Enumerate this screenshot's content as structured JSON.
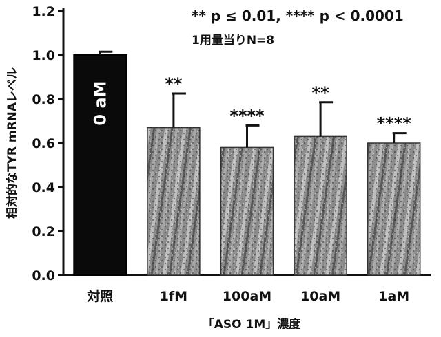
{
  "chart_data": {
    "type": "bar",
    "title": "",
    "annotation_stats": "** p ≤ 0.01,  **** p < 0.0001",
    "annotation_n": "1用量当りN=8",
    "xlabel": "「ASO 1M」濃度",
    "ylabel": "相対的なTYR mRNAレベル",
    "ylim": [
      0.0,
      1.2
    ],
    "yticks": [
      "0.0",
      "0.2",
      "0.4",
      "0.6",
      "0.8",
      "1.0",
      "1.2"
    ],
    "categories": [
      "対照",
      "1fM",
      "100aM",
      "10aM",
      "1aM"
    ],
    "values": [
      1.0,
      0.67,
      0.58,
      0.63,
      0.6
    ],
    "errors": [
      0.015,
      0.155,
      0.1,
      0.155,
      0.045
    ],
    "significance": [
      "",
      "**",
      "****",
      "**",
      "****"
    ],
    "bar_inner_labels": [
      "0 aM",
      "",
      "",
      "",
      ""
    ],
    "colors": {
      "control": "#0a0a0a",
      "treated": "#9a9a9a",
      "axis": "#111111"
    },
    "grid": false
  }
}
